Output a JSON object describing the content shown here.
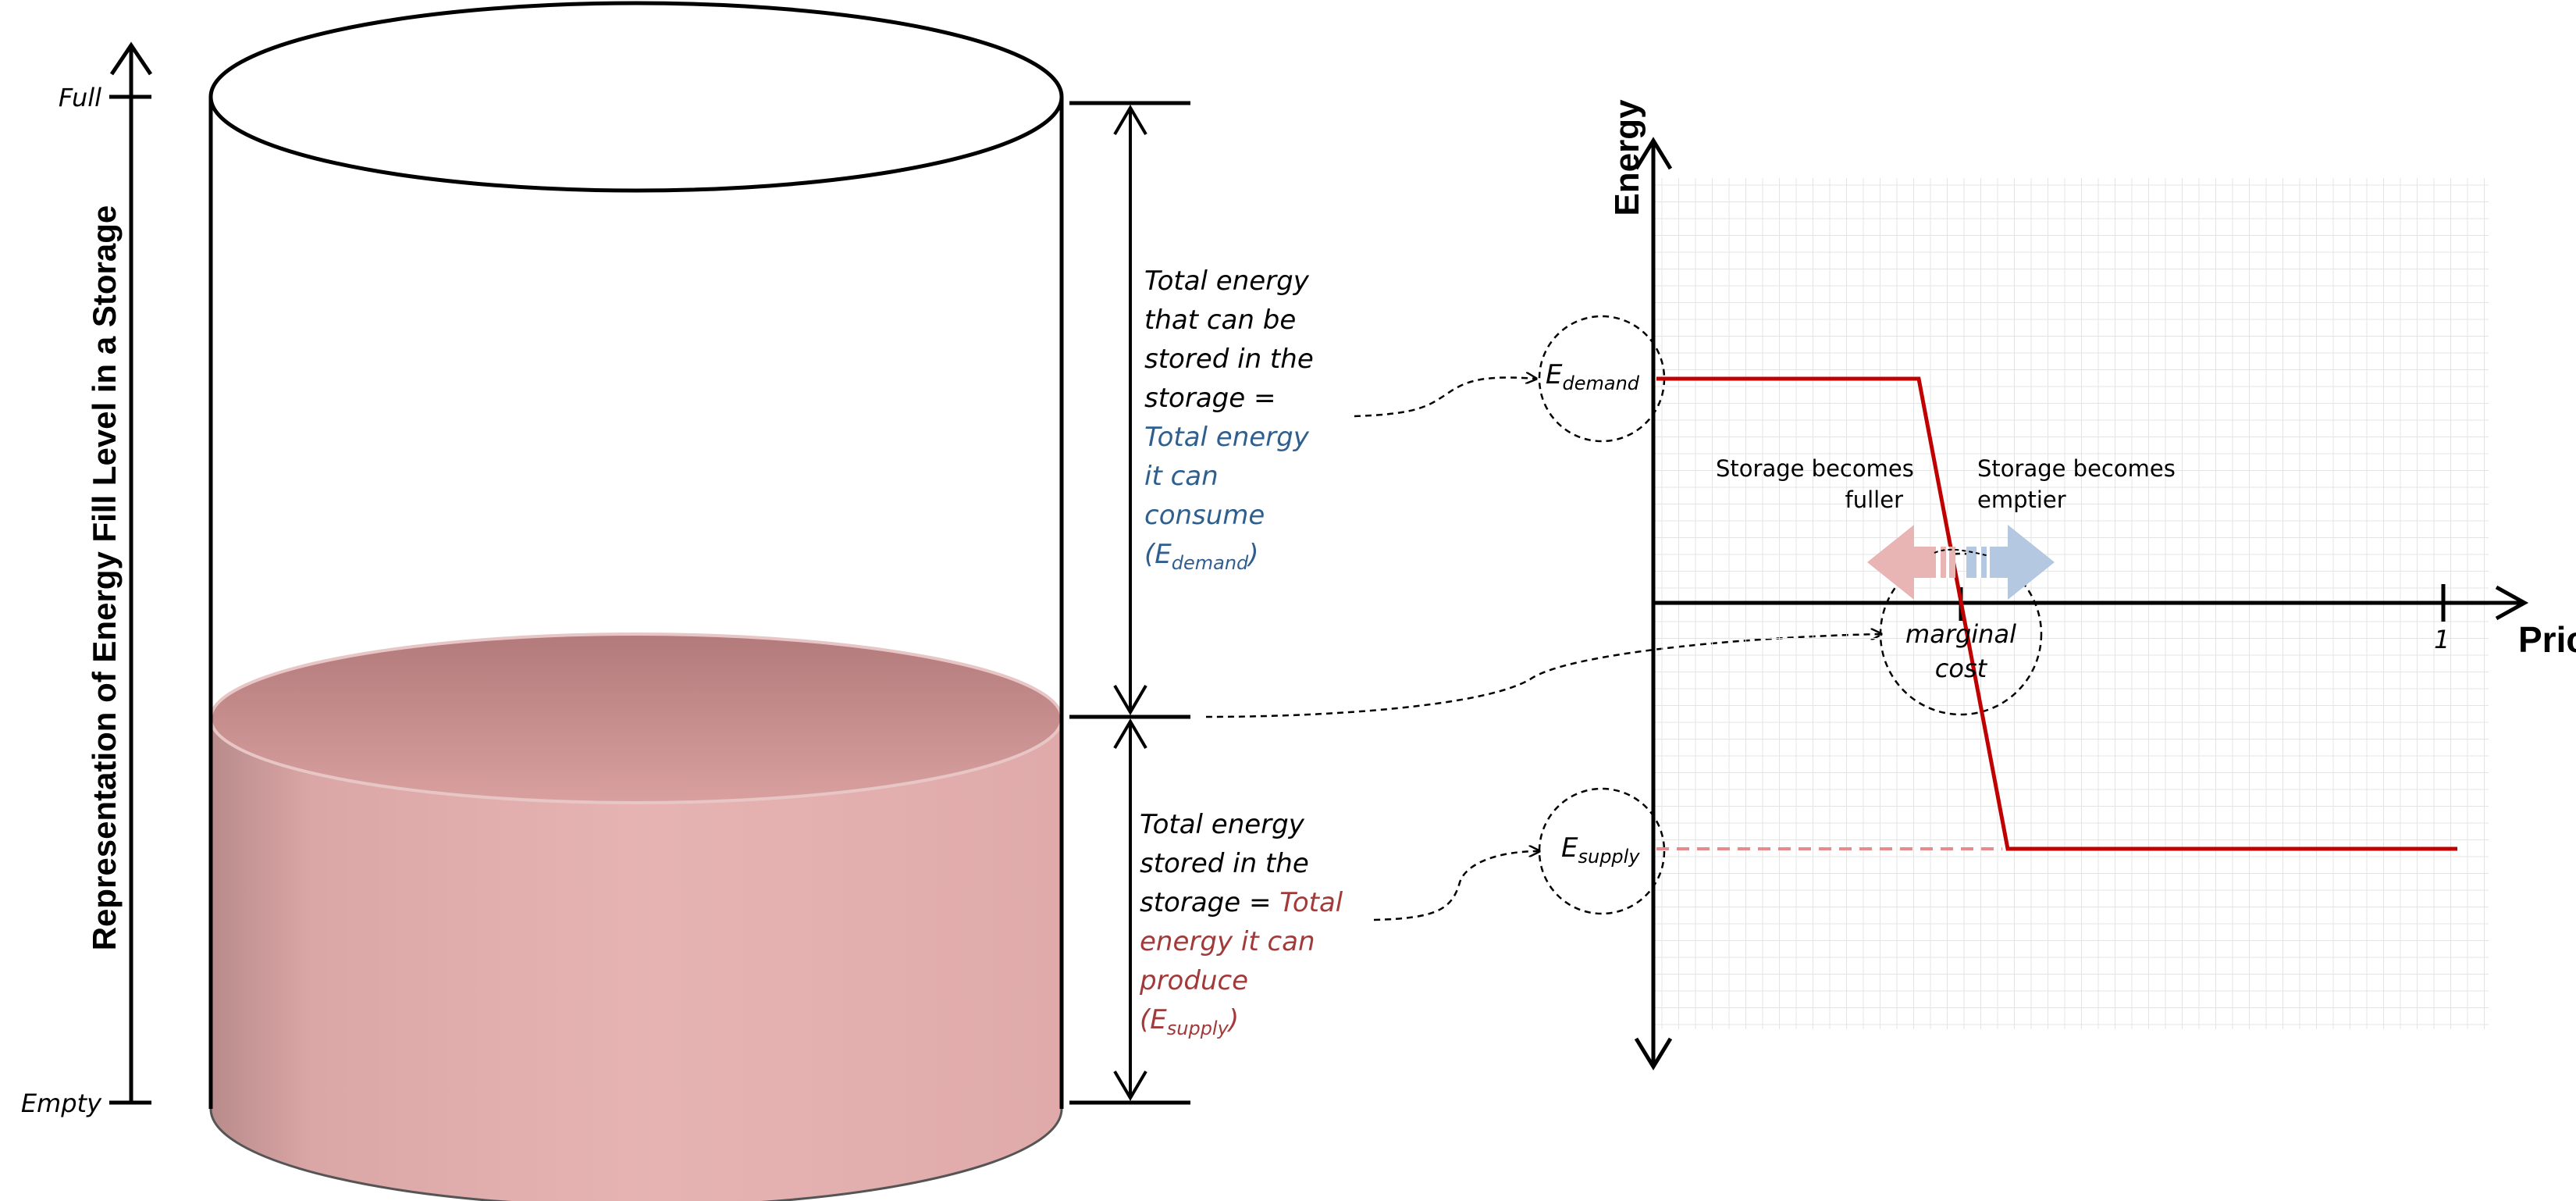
{
  "left_axis": {
    "title": "Representation of Energy Fill Level in a Storage",
    "top_label": "Full",
    "bottom_label": "Empty"
  },
  "notes": {
    "upper_black": [
      "Total energy",
      "that can be",
      "stored in the",
      "storage ="
    ],
    "upper_colored": [
      "Total energy",
      "it can",
      "consume"
    ],
    "upper_symbol_open": "(E",
    "upper_symbol_sub": "demand",
    "upper_symbol_close": ")",
    "lower_line1": "Total energy",
    "lower_line2": "stored in the",
    "lower_line3_black": "storage = ",
    "lower_line3_red": "Total",
    "lower_colored": [
      "energy it can",
      "produce"
    ],
    "lower_symbol_open": "(E",
    "lower_symbol_sub": "supply",
    "lower_symbol_close": ")"
  },
  "chart": {
    "y_label": "Energy",
    "x_label": "Price",
    "x_tick": "1",
    "demand_label": "E",
    "demand_sub": "demand",
    "supply_label": "E",
    "supply_sub": "supply",
    "fuller_line1": "Storage becomes",
    "fuller_line2": "fuller",
    "emptier_line1": "Storage becomes",
    "emptier_line2": "emptier",
    "marginal_line1": "marginal",
    "marginal_line2": "cost"
  },
  "colors": {
    "liquid": "#e2aaaa",
    "liquid_top": "#c98787",
    "curve": "#c00000",
    "arrow_red": "#e8b4b4",
    "arrow_blue": "#b4c8e2",
    "text_blue": "#2f5f8f",
    "text_red": "#a23a3a"
  }
}
